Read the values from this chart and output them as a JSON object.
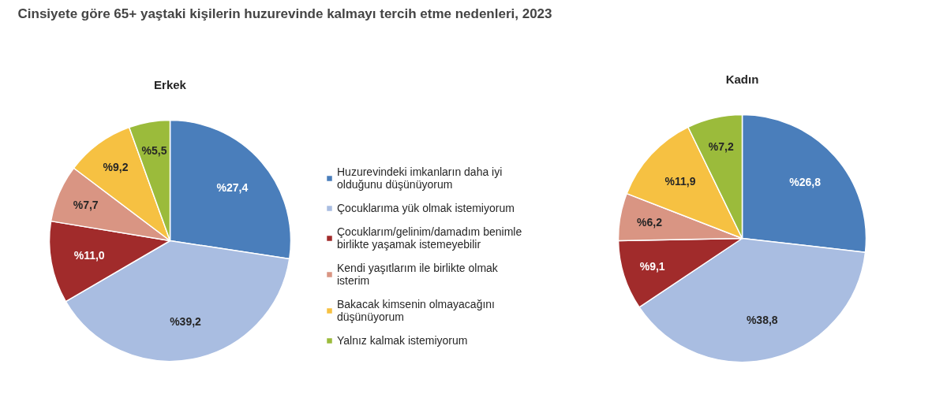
{
  "chart_data": {
    "type": "pie",
    "title": "Cinsiyete göre 65+ yaştaki kişilerin huzurevinde kalmayı tercih etme nedenleri, 2023",
    "legend": "right",
    "categories": [
      "Huzurevindeki imkanların daha iyi olduğunu düşünüyorum",
      "Çocuklarıma yük olmak istemiyorum",
      "Çocuklarım/gelinim/damadım benimle birlikte yaşamak istemeyebilir",
      "Kendi yaşıtlarım ile birlikte olmak isterim",
      "Bakacak kimsenin olmayacağını düşünüyorum",
      "Yalnız kalmak istemiyorum"
    ],
    "colors": [
      "#4a7ebb",
      "#a9bde1",
      "#a12b2b",
      "#d99583",
      "#f6c142",
      "#9bbb3b"
    ],
    "series": [
      {
        "name": "Erkek",
        "values": [
          27.4,
          39.2,
          11.0,
          7.7,
          9.2,
          5.5
        ],
        "value_labels": [
          "%27,4",
          "%39,2",
          "%11,0",
          "%7,7",
          "%9,2",
          "%5,5"
        ]
      },
      {
        "name": "Kadın",
        "values": [
          26.8,
          38.8,
          9.1,
          6.2,
          11.9,
          7.2
        ],
        "value_labels": [
          "%26,8",
          "%38,8",
          "%9,1",
          "%6,2",
          "%11,9",
          "%7,2"
        ]
      }
    ]
  }
}
